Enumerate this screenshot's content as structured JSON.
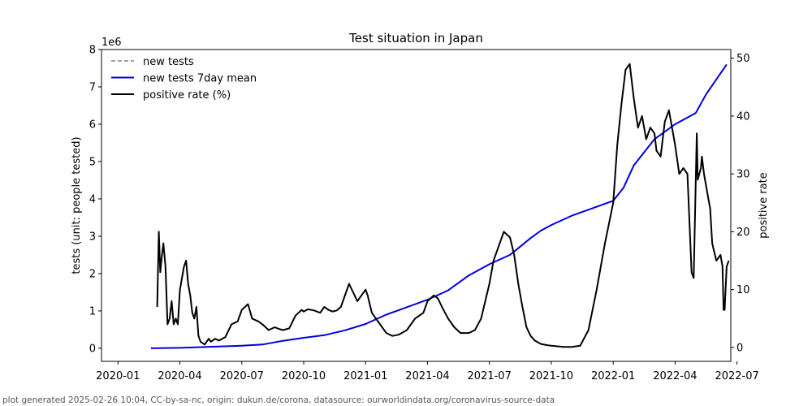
{
  "chart_data": {
    "type": "line",
    "title": "Test situation in Japan",
    "ylabel_left": "tests (unit: people tested)",
    "ylabel_right": "positive rate",
    "left_offset_label": "1e6",
    "ylim_left": [
      -0.35,
      8.0
    ],
    "ylim_right": [
      -2.4,
      51.5
    ],
    "yticks_left": [
      0,
      1,
      2,
      3,
      4,
      5,
      6,
      7,
      8
    ],
    "yticks_right": [
      0,
      10,
      20,
      30,
      40,
      50
    ],
    "x_range_months": [
      -0.8,
      29.7
    ],
    "xticks": [
      {
        "m": 0,
        "label": "2020-01"
      },
      {
        "m": 3,
        "label": "2020-04"
      },
      {
        "m": 6,
        "label": "2020-07"
      },
      {
        "m": 9,
        "label": "2020-10"
      },
      {
        "m": 12,
        "label": "2021-01"
      },
      {
        "m": 15,
        "label": "2021-04"
      },
      {
        "m": 18,
        "label": "2021-07"
      },
      {
        "m": 21,
        "label": "2021-10"
      },
      {
        "m": 24,
        "label": "2022-01"
      },
      {
        "m": 27,
        "label": "2022-04"
      },
      {
        "m": 30,
        "label": "2022-07"
      }
    ],
    "legend": [
      {
        "label": "new tests",
        "color": "#808080",
        "style": "dashed"
      },
      {
        "label": "new tests 7day mean",
        "color": "#0000dd",
        "style": "solid"
      },
      {
        "label": "positive rate (%)",
        "color": "#000000",
        "style": "solid"
      }
    ],
    "series": [
      {
        "name": "new tests 7day mean",
        "axis": "left",
        "color": "#0000dd",
        "x": [
          1.6,
          3,
          4,
          5,
          6,
          7,
          8,
          9,
          10,
          11,
          12,
          13,
          14,
          15,
          16,
          17,
          18,
          19,
          20,
          20.5,
          21,
          22,
          23,
          24,
          24.5,
          25,
          26,
          27,
          28,
          28.5,
          29,
          29.5
        ],
        "y": [
          0.0,
          0.01,
          0.03,
          0.05,
          0.07,
          0.1,
          0.2,
          0.28,
          0.35,
          0.48,
          0.65,
          0.9,
          1.1,
          1.3,
          1.55,
          1.95,
          2.25,
          2.5,
          2.95,
          3.15,
          3.3,
          3.55,
          3.75,
          3.95,
          4.3,
          4.9,
          5.6,
          6.0,
          6.3,
          6.8,
          7.2,
          7.6
        ]
      },
      {
        "name": "positive rate (%)",
        "axis": "right",
        "color": "#000000",
        "x": [
          1.9,
          1.98,
          2.05,
          2.1,
          2.2,
          2.3,
          2.4,
          2.5,
          2.6,
          2.7,
          2.8,
          2.9,
          3.0,
          3.1,
          3.2,
          3.3,
          3.4,
          3.5,
          3.6,
          3.7,
          3.8,
          3.9,
          4.0,
          4.2,
          4.4,
          4.5,
          4.7,
          4.9,
          5.2,
          5.5,
          5.8,
          6.0,
          6.3,
          6.5,
          6.8,
          7.0,
          7.3,
          7.6,
          7.8,
          8.0,
          8.3,
          8.6,
          8.9,
          9.0,
          9.2,
          9.5,
          9.8,
          10.0,
          10.2,
          10.4,
          10.6,
          10.8,
          11.2,
          11.6,
          12.0,
          12.1,
          12.3,
          12.5,
          12.8,
          13.0,
          13.3,
          13.6,
          14.0,
          14.4,
          14.8,
          15.0,
          15.3,
          15.5,
          15.7,
          16.0,
          16.3,
          16.6,
          17.0,
          17.3,
          17.6,
          17.8,
          18.0,
          18.2,
          18.5,
          18.7,
          19.0,
          19.2,
          19.4,
          19.6,
          19.8,
          20.0,
          20.2,
          20.5,
          20.8,
          21.0,
          21.3,
          21.6,
          22.0,
          22.4,
          22.8,
          23.2,
          23.6,
          24.0,
          24.2,
          24.4,
          24.6,
          24.8,
          25.0,
          25.2,
          25.4,
          25.6,
          25.8,
          26.0,
          26.1,
          26.3,
          26.5,
          26.7,
          26.9,
          27.0,
          27.2,
          27.4,
          27.6,
          27.8,
          27.9,
          28.05,
          28.1,
          28.25,
          28.3,
          28.4,
          28.5,
          28.6,
          28.7,
          28.8,
          29.0,
          29.2,
          29.3,
          29.35,
          29.4,
          29.5,
          29.6
        ],
        "y": [
          7,
          20,
          13,
          15,
          18,
          14,
          4,
          5,
          8,
          4,
          5,
          4,
          10,
          12,
          14,
          15,
          11,
          9,
          6,
          5,
          7,
          2,
          1,
          0.5,
          1.5,
          1,
          1.5,
          1.2,
          1.8,
          4,
          4.5,
          6.5,
          7.5,
          5,
          4.5,
          4,
          3,
          3.5,
          3.2,
          3,
          3.3,
          5.5,
          6.5,
          6.2,
          6.6,
          6.4,
          6,
          7,
          6.5,
          6.2,
          6.4,
          7,
          11,
          8,
          10,
          9,
          6,
          5,
          3.5,
          2.5,
          2,
          2.2,
          3,
          5,
          6,
          8,
          9,
          8.5,
          7,
          5,
          3.5,
          2.5,
          2.5,
          3,
          5,
          8,
          11,
          15,
          18,
          20,
          19,
          16,
          11,
          7,
          3.5,
          2,
          1.2,
          0.6,
          0.4,
          0.3,
          0.2,
          0.1,
          0.1,
          0.3,
          3,
          10,
          18,
          25,
          35,
          42,
          48,
          49,
          43,
          38,
          40,
          36,
          38,
          37,
          34,
          33,
          39,
          41,
          37,
          35,
          30,
          31,
          30,
          13,
          12,
          37,
          29,
          31,
          33,
          30,
          28,
          26,
          24,
          18,
          15,
          16,
          14,
          6.5,
          6.5,
          14,
          15
        ]
      }
    ]
  },
  "footer": "plot generated 2025-02-26 10:04, CC-by-sa-nc, origin: dukun.de/corona, datasource: ourworldindata.org/coronavirus-source-data"
}
